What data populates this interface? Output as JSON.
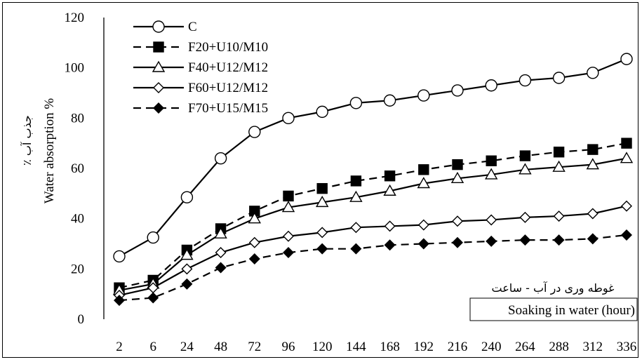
{
  "chart_data": {
    "type": "line",
    "categories": [
      "2",
      "6",
      "24",
      "48",
      "72",
      "96",
      "120",
      "144",
      "168",
      "192",
      "216",
      "240",
      "264",
      "288",
      "312",
      "336"
    ],
    "ylabel": "Water absorption %",
    "ylabel_fa": "جذب آب ٪",
    "xlabel": "Soaking in water (hour)",
    "xlabel_fa": "غوطه وری در آب - ساعت",
    "ylim": [
      0,
      120
    ],
    "yticks": [
      "0",
      "20",
      "40",
      "60",
      "80",
      "100",
      "120"
    ],
    "grid": false,
    "legend_position": "top-left",
    "series": [
      {
        "name": "C",
        "marker": "circle-open",
        "dash": "solid",
        "values": [
          25,
          32.5,
          48.5,
          64,
          74.5,
          80,
          82.5,
          86,
          87,
          89,
          91,
          93,
          95,
          96,
          98,
          103.5
        ]
      },
      {
        "name": "F20+U10/M10",
        "marker": "square-filled",
        "dash": "dashed",
        "values": [
          12.5,
          15.5,
          27.5,
          36,
          43,
          49,
          52,
          55,
          57,
          59.5,
          61.5,
          63,
          65,
          66.5,
          67.5,
          70
        ]
      },
      {
        "name": "F40+U12/M12",
        "marker": "triangle-open",
        "dash": "solid",
        "values": [
          11.5,
          14,
          25.5,
          34,
          40,
          44.5,
          46.5,
          48.5,
          51,
          54,
          56,
          57.5,
          59.5,
          60.5,
          61.5,
          64
        ]
      },
      {
        "name": "F60+U12/M12",
        "marker": "diamond-open",
        "dash": "solid",
        "values": [
          9.5,
          12.5,
          20,
          26.5,
          30.5,
          33,
          34.5,
          36.5,
          37,
          37.5,
          39,
          39.5,
          40.5,
          41,
          42,
          45
        ]
      },
      {
        "name": "F70+U15/M15",
        "marker": "diamond-filled",
        "dash": "dashed",
        "values": [
          7.5,
          8.5,
          14,
          20.5,
          24,
          26.5,
          28,
          28,
          29.5,
          30,
          30.5,
          31,
          31.5,
          31.5,
          32,
          33.5
        ]
      }
    ]
  }
}
